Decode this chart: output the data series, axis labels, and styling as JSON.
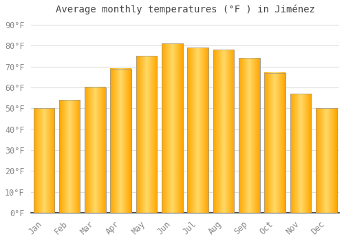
{
  "title": "Average monthly temperatures (°F ) in Jiménez",
  "months": [
    "Jan",
    "Feb",
    "Mar",
    "Apr",
    "May",
    "Jun",
    "Jul",
    "Aug",
    "Sep",
    "Oct",
    "Nov",
    "Dec"
  ],
  "values": [
    50,
    54,
    60,
    69,
    75,
    81,
    79,
    78,
    74,
    67,
    57,
    50
  ],
  "bar_color_center": "#FFD966",
  "bar_color_edge": "#FFA500",
  "bar_edge_color": "#999999",
  "background_color": "#FFFFFF",
  "grid_color": "#DDDDDD",
  "ylim": [
    0,
    93
  ],
  "yticks": [
    0,
    10,
    20,
    30,
    40,
    50,
    60,
    70,
    80,
    90
  ],
  "ytick_labels": [
    "0°F",
    "10°F",
    "20°F",
    "30°F",
    "40°F",
    "50°F",
    "60°F",
    "70°F",
    "80°F",
    "90°F"
  ],
  "title_fontsize": 10,
  "tick_fontsize": 8.5,
  "bar_width": 0.82
}
